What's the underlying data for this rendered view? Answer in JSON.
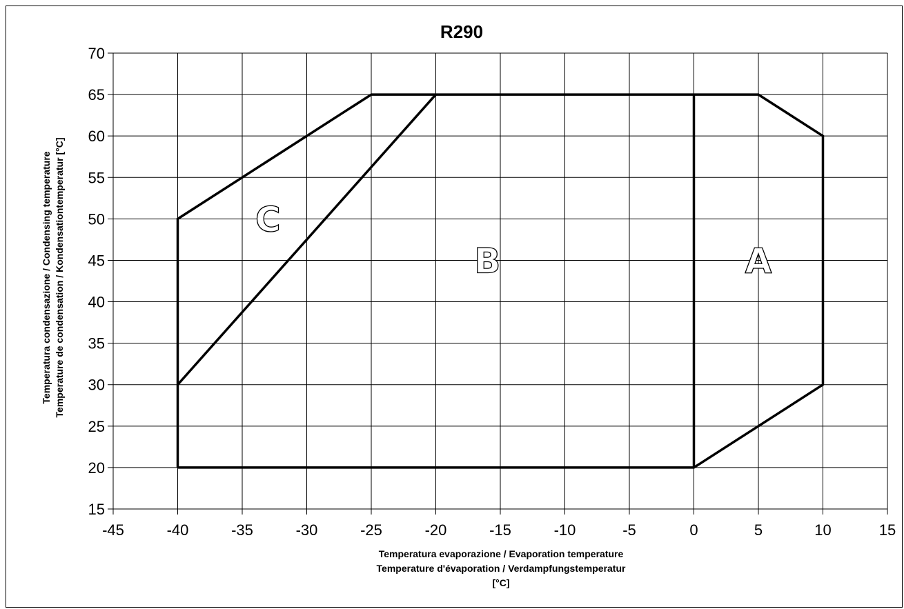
{
  "chart_data": {
    "type": "line",
    "title": "R290",
    "xlabel": [
      "Temperatura evaporazione / Evaporation temperature",
      "Temperature d'évaporation / Verdampfungstemperatur",
      "[°C]"
    ],
    "ylabel": [
      "Temperatura condensazione / Condensing temperature",
      "Temperature de condensation / Kondensationtemperatur [°C]"
    ],
    "xlim": [
      -45,
      15
    ],
    "ylim": [
      15,
      70
    ],
    "xticks": [
      -45,
      -40,
      -35,
      -30,
      -25,
      -20,
      -15,
      -10,
      -5,
      0,
      5,
      10,
      15
    ],
    "yticks": [
      15,
      20,
      25,
      30,
      35,
      40,
      45,
      50,
      55,
      60,
      65,
      70
    ],
    "grid": true,
    "envelope": {
      "outline": [
        [
          -40,
          20
        ],
        [
          -40,
          50
        ],
        [
          -25,
          65
        ],
        [
          5,
          65
        ],
        [
          10,
          60
        ],
        [
          10,
          30
        ],
        [
          0,
          20
        ],
        [
          -40,
          20
        ]
      ],
      "dividers": [
        [
          [
            0,
            20
          ],
          [
            0,
            65
          ]
        ],
        [
          [
            -40,
            30
          ],
          [
            -20,
            65
          ]
        ]
      ]
    },
    "regions": [
      {
        "label": "A",
        "x": 5,
        "y": 45
      },
      {
        "label": "B",
        "x": -16,
        "y": 45
      },
      {
        "label": "C",
        "x": -33,
        "y": 50
      }
    ]
  }
}
